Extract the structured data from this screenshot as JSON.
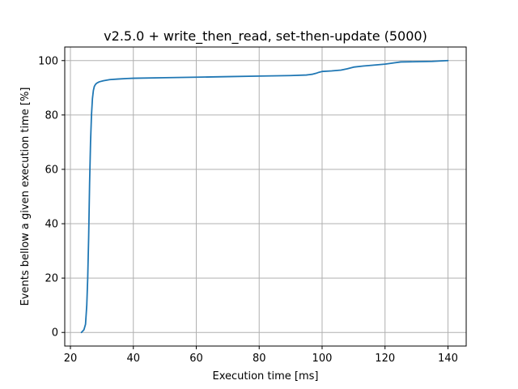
{
  "chart_data": {
    "type": "line",
    "title": "v2.5.0 + write_then_read, set-then-update (5000)",
    "xlabel": "Execution time [ms]",
    "ylabel": "Events bellow a given execution time [%]",
    "xlim": [
      18.2,
      145.8
    ],
    "ylim": [
      -5,
      105
    ],
    "xticks": [
      20,
      40,
      60,
      80,
      100,
      120,
      140
    ],
    "yticks": [
      0,
      20,
      40,
      60,
      80,
      100
    ],
    "grid": true,
    "series": [
      {
        "color": "#1f77b4",
        "x": [
          23.5,
          24.3,
          24.8,
          25.2,
          25.5,
          25.8,
          26.1,
          26.4,
          26.7,
          27.0,
          27.3,
          27.6,
          28.0,
          28.5,
          29.2,
          30.5,
          32.5,
          35,
          38,
          40,
          50,
          60,
          70,
          80,
          90,
          95,
          97,
          98,
          99,
          100,
          103,
          106,
          108,
          110,
          113,
          116,
          120,
          123,
          125,
          130,
          135,
          138,
          140
        ],
        "y": [
          0,
          1,
          3,
          10,
          20,
          35,
          55,
          70,
          80,
          86,
          89,
          90.5,
          91.3,
          91.8,
          92.2,
          92.6,
          93.0,
          93.2,
          93.4,
          93.5,
          93.7,
          93.9,
          94.1,
          94.3,
          94.5,
          94.7,
          95.0,
          95.3,
          95.7,
          96.0,
          96.2,
          96.5,
          97.0,
          97.6,
          98.0,
          98.3,
          98.7,
          99.2,
          99.5,
          99.6,
          99.7,
          99.9,
          100
        ]
      }
    ]
  }
}
